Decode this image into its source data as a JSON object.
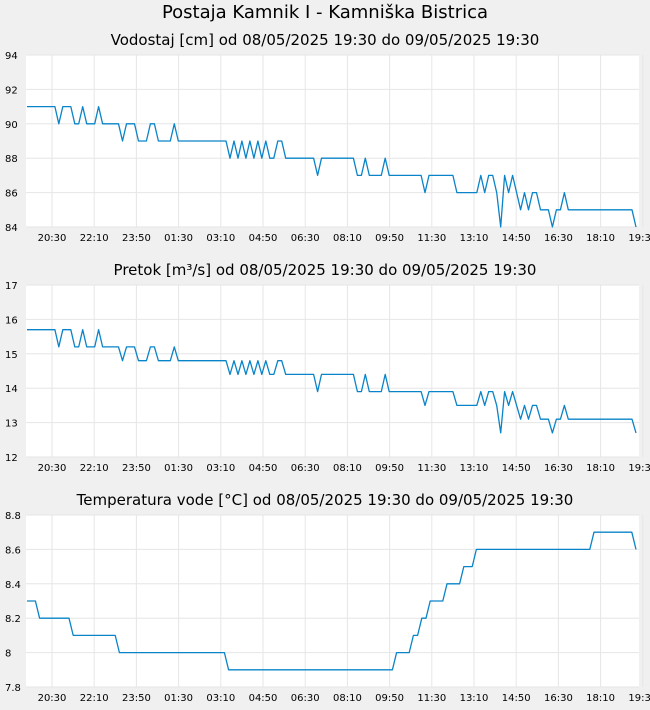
{
  "station_title": "Postaja Kamnik I - Kamniška Bistrica",
  "colors": {
    "line": "#0a84c8",
    "plot_bg": "#ffffff",
    "grid": "#e6e6e6",
    "page_bg": "#f0f0f0"
  },
  "chart_data": [
    {
      "type": "line",
      "title": "Vodostaj [cm] od 08/05/2025 19:30 do 09/05/2025 19:30",
      "xlabel": "",
      "ylabel": "",
      "x_tick_labels": [
        "20:30",
        "22:10",
        "23:50",
        "01:30",
        "03:10",
        "04:50",
        "06:30",
        "08:10",
        "09:50",
        "11:30",
        "13:10",
        "14:50",
        "16:30",
        "18:10",
        "19:30"
      ],
      "y_ticks": [
        "84",
        "86",
        "88",
        "90",
        "92",
        "94"
      ],
      "ylim": [
        84,
        94
      ],
      "grid": true,
      "series": [
        {
          "values": [
            91,
            91,
            91,
            91,
            91,
            91,
            91,
            91,
            90,
            91,
            91,
            91,
            90,
            90,
            91,
            90,
            90,
            90,
            91,
            90,
            90,
            90,
            90,
            90,
            89,
            90,
            90,
            90,
            89,
            89,
            89,
            90,
            90,
            89,
            89,
            89,
            89,
            90,
            89,
            89,
            89,
            89,
            89,
            89,
            89,
            89,
            89,
            89,
            89,
            89,
            89,
            88,
            89,
            88,
            89,
            88,
            89,
            88,
            89,
            88,
            89,
            88,
            88,
            89,
            89,
            88,
            88,
            88,
            88,
            88,
            88,
            88,
            88,
            87,
            88,
            88,
            88,
            88,
            88,
            88,
            88,
            88,
            88,
            87,
            87,
            88,
            87,
            87,
            87,
            87,
            88,
            87,
            87,
            87,
            87,
            87,
            87,
            87,
            87,
            87,
            86,
            87,
            87,
            87,
            87,
            87,
            87,
            87,
            86,
            86,
            86,
            86,
            86,
            86,
            87,
            86,
            87,
            87,
            86,
            84,
            87,
            86,
            87,
            86,
            85,
            86,
            85,
            86,
            86,
            85,
            85,
            85,
            84,
            85,
            85,
            86,
            85,
            85,
            85,
            85,
            85,
            85,
            85,
            85,
            85,
            85,
            85,
            85,
            85,
            85,
            85,
            85,
            85,
            84
          ]
        }
      ]
    },
    {
      "type": "line",
      "title": "Pretok [m³/s] od 08/05/2025 19:30 do 09/05/2025 19:30",
      "xlabel": "",
      "ylabel": "",
      "x_tick_labels": [
        "20:30",
        "22:10",
        "23:50",
        "01:30",
        "03:10",
        "04:50",
        "06:30",
        "08:10",
        "09:50",
        "11:30",
        "13:10",
        "14:50",
        "16:30",
        "18:10",
        "19:30"
      ],
      "y_ticks": [
        "12",
        "13",
        "14",
        "15",
        "16",
        "17"
      ],
      "ylim": [
        12,
        17
      ],
      "grid": true,
      "series": [
        {
          "values": [
            15.7,
            15.7,
            15.7,
            15.7,
            15.7,
            15.7,
            15.7,
            15.7,
            15.2,
            15.7,
            15.7,
            15.7,
            15.2,
            15.2,
            15.7,
            15.2,
            15.2,
            15.2,
            15.7,
            15.2,
            15.2,
            15.2,
            15.2,
            15.2,
            14.8,
            15.2,
            15.2,
            15.2,
            14.8,
            14.8,
            14.8,
            15.2,
            15.2,
            14.8,
            14.8,
            14.8,
            14.8,
            15.2,
            14.8,
            14.8,
            14.8,
            14.8,
            14.8,
            14.8,
            14.8,
            14.8,
            14.8,
            14.8,
            14.8,
            14.8,
            14.8,
            14.4,
            14.8,
            14.4,
            14.8,
            14.4,
            14.8,
            14.4,
            14.8,
            14.4,
            14.8,
            14.4,
            14.4,
            14.8,
            14.8,
            14.4,
            14.4,
            14.4,
            14.4,
            14.4,
            14.4,
            14.4,
            14.4,
            13.9,
            14.4,
            14.4,
            14.4,
            14.4,
            14.4,
            14.4,
            14.4,
            14.4,
            14.4,
            13.9,
            13.9,
            14.4,
            13.9,
            13.9,
            13.9,
            13.9,
            14.4,
            13.9,
            13.9,
            13.9,
            13.9,
            13.9,
            13.9,
            13.9,
            13.9,
            13.9,
            13.5,
            13.9,
            13.9,
            13.9,
            13.9,
            13.9,
            13.9,
            13.9,
            13.5,
            13.5,
            13.5,
            13.5,
            13.5,
            13.5,
            13.9,
            13.5,
            13.9,
            13.9,
            13.5,
            12.7,
            13.9,
            13.5,
            13.9,
            13.5,
            13.1,
            13.5,
            13.1,
            13.5,
            13.5,
            13.1,
            13.1,
            13.1,
            12.7,
            13.1,
            13.1,
            13.5,
            13.1,
            13.1,
            13.1,
            13.1,
            13.1,
            13.1,
            13.1,
            13.1,
            13.1,
            13.1,
            13.1,
            13.1,
            13.1,
            13.1,
            13.1,
            13.1,
            13.1,
            12.7
          ]
        }
      ]
    },
    {
      "type": "line",
      "title": "Temperatura vode [°C] od 08/05/2025 19:30 do 09/05/2025 19:30",
      "xlabel": "",
      "ylabel": "",
      "x_tick_labels": [
        "20:30",
        "22:10",
        "23:50",
        "01:30",
        "03:10",
        "04:50",
        "06:30",
        "08:10",
        "09:50",
        "11:30",
        "13:10",
        "14:50",
        "16:30",
        "18:10",
        "19:30"
      ],
      "y_ticks": [
        "7.8",
        "8",
        "8.2",
        "8.4",
        "8.6",
        "8.8"
      ],
      "ylim": [
        7.8,
        8.8
      ],
      "grid": true,
      "series": [
        {
          "values": [
            8.3,
            8.3,
            8.3,
            8.2,
            8.2,
            8.2,
            8.2,
            8.2,
            8.2,
            8.2,
            8.2,
            8.1,
            8.1,
            8.1,
            8.1,
            8.1,
            8.1,
            8.1,
            8.1,
            8.1,
            8.1,
            8.1,
            8,
            8,
            8,
            8,
            8,
            8,
            8,
            8,
            8,
            8,
            8,
            8,
            8,
            8,
            8,
            8,
            8,
            8,
            8,
            8,
            8,
            8,
            8,
            8,
            8,
            8,
            7.9,
            7.9,
            7.9,
            7.9,
            7.9,
            7.9,
            7.9,
            7.9,
            7.9,
            7.9,
            7.9,
            7.9,
            7.9,
            7.9,
            7.9,
            7.9,
            7.9,
            7.9,
            7.9,
            7.9,
            7.9,
            7.9,
            7.9,
            7.9,
            7.9,
            7.9,
            7.9,
            7.9,
            7.9,
            7.9,
            7.9,
            7.9,
            7.9,
            7.9,
            7.9,
            7.9,
            7.9,
            7.9,
            7.9,
            7.9,
            8,
            8,
            8,
            8,
            8.1,
            8.1,
            8.2,
            8.2,
            8.3,
            8.3,
            8.3,
            8.3,
            8.4,
            8.4,
            8.4,
            8.4,
            8.5,
            8.5,
            8.5,
            8.6,
            8.6,
            8.6,
            8.6,
            8.6,
            8.6,
            8.6,
            8.6,
            8.6,
            8.6,
            8.6,
            8.6,
            8.6,
            8.6,
            8.6,
            8.6,
            8.6,
            8.6,
            8.6,
            8.6,
            8.6,
            8.6,
            8.6,
            8.6,
            8.6,
            8.6,
            8.6,
            8.6,
            8.7,
            8.7,
            8.7,
            8.7,
            8.7,
            8.7,
            8.7,
            8.7,
            8.7,
            8.7,
            8.6
          ]
        }
      ]
    }
  ]
}
